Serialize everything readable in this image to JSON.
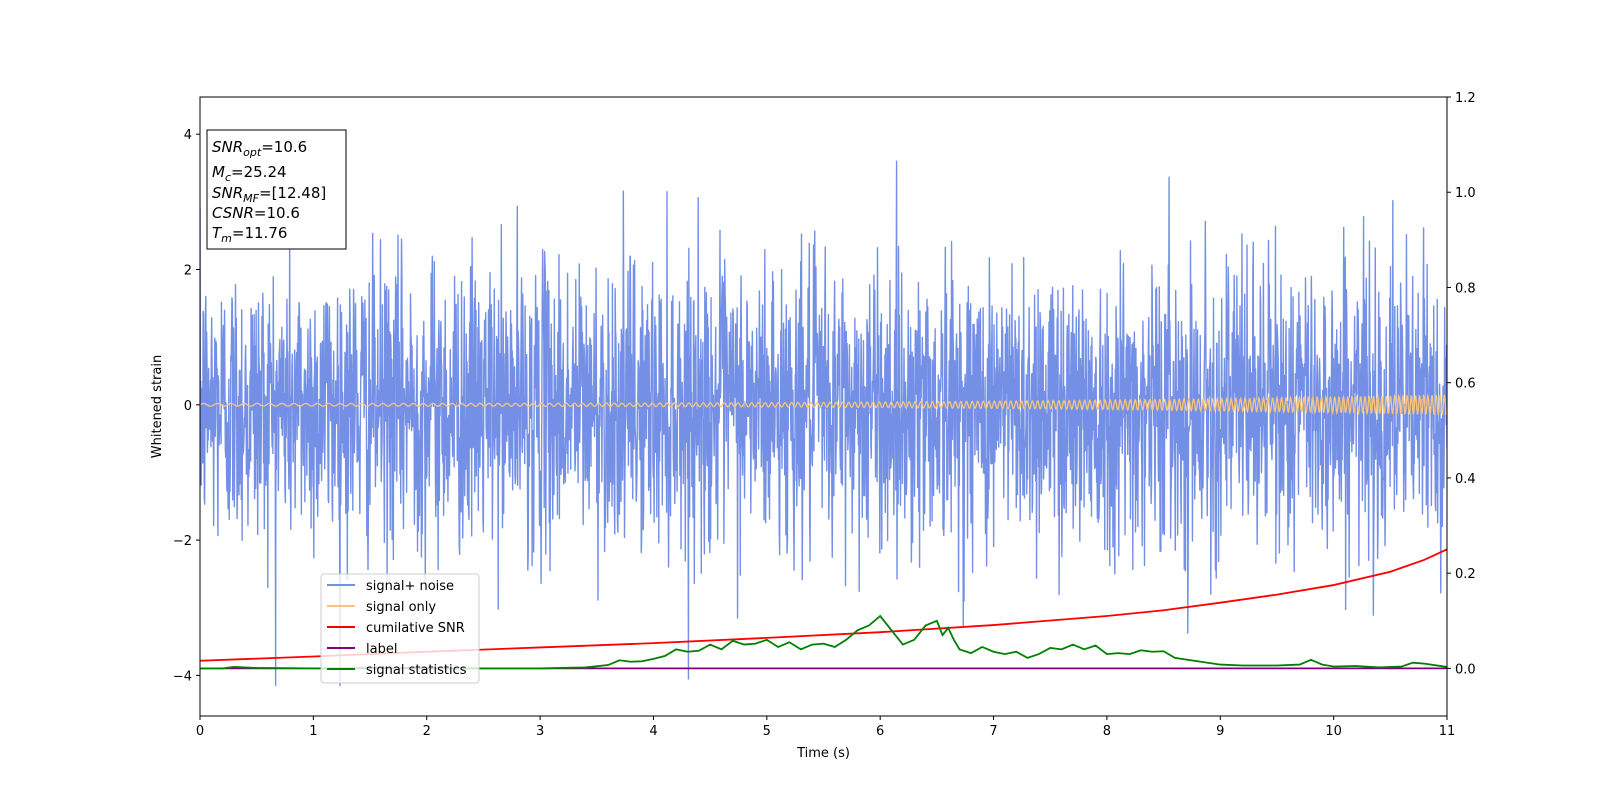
{
  "chart_data": {
    "type": "line",
    "xlabel": "Time (s)",
    "ylabel": "Whitened strain",
    "xlim": [
      0,
      11
    ],
    "ylim": [
      -4.6,
      4.55
    ],
    "y2lim": [
      -0.1,
      1.2
    ],
    "xticks": [
      "0",
      "1",
      "2",
      "3",
      "4",
      "5",
      "6",
      "7",
      "8",
      "9",
      "10",
      "11"
    ],
    "yticks": [
      "−4",
      "−2",
      "0",
      "2",
      "4"
    ],
    "y2ticks": [
      "0.0",
      "0.2",
      "0.4",
      "0.6",
      "0.8",
      "1.0",
      "1.2"
    ],
    "grid": false,
    "legend": {
      "location": "lower-left",
      "entries": [
        {
          "label": "signal+ noise",
          "color": "#7490e6"
        },
        {
          "label": "signal only",
          "color": "#f7c67a"
        },
        {
          "label": "cumilative SNR",
          "color": "#ff0000"
        },
        {
          "label": "label",
          "color": "#800080"
        },
        {
          "label": "signal statistics",
          "color": "#008000"
        }
      ]
    },
    "info_box": {
      "location": "top-left",
      "lines": [
        {
          "sym": "SNR",
          "sub": "opt",
          "val": "=10.6"
        },
        {
          "sym": "M",
          "sub": "c",
          "val": "=25.24"
        },
        {
          "sym": "SNR",
          "sub": "MF",
          "val": "=[12.48]"
        },
        {
          "sym": "CSNR",
          "sub": "",
          "val": "=10.6"
        },
        {
          "sym": "T",
          "sub": "m",
          "val": "=11.76"
        }
      ]
    },
    "series": [
      {
        "name": "signal+ noise",
        "axis": "left",
        "color": "#7490e6",
        "kind": "noise",
        "envelope_quantiles": [
          -2.3,
          2.3
        ],
        "extremes": [
          -4.15,
          4.12
        ]
      },
      {
        "name": "signal only",
        "axis": "left",
        "color": "#f7c67a",
        "kind": "chirp",
        "amplitude_start": 0.02,
        "amplitude_end": 0.15
      },
      {
        "name": "cumilative SNR",
        "axis": "right",
        "color": "#ff0000",
        "x": [
          0,
          1,
          2,
          3,
          4,
          5,
          6,
          7,
          8,
          8.5,
          9,
          9.5,
          10,
          10.5,
          10.8,
          11
        ],
        "y": [
          0.016,
          0.025,
          0.035,
          0.044,
          0.053,
          0.064,
          0.076,
          0.091,
          0.11,
          0.122,
          0.138,
          0.155,
          0.175,
          0.203,
          0.228,
          0.25
        ]
      },
      {
        "name": "label",
        "axis": "right",
        "color": "#800080",
        "x": [
          0,
          11
        ],
        "y": [
          0.0,
          0.0
        ]
      },
      {
        "name": "signal statistics",
        "axis": "right",
        "color": "#008000",
        "x": [
          0,
          0.2,
          0.3,
          0.5,
          1.0,
          1.5,
          2.0,
          2.5,
          3.0,
          3.4,
          3.6,
          3.7,
          3.8,
          3.9,
          4.0,
          4.1,
          4.2,
          4.3,
          4.4,
          4.5,
          4.6,
          4.7,
          4.8,
          4.9,
          5.0,
          5.1,
          5.2,
          5.3,
          5.4,
          5.5,
          5.6,
          5.7,
          5.8,
          5.9,
          6.0,
          6.1,
          6.2,
          6.3,
          6.4,
          6.5,
          6.55,
          6.6,
          6.65,
          6.7,
          6.8,
          6.9,
          7.0,
          7.1,
          7.2,
          7.3,
          7.4,
          7.5,
          7.6,
          7.7,
          7.8,
          7.9,
          8.0,
          8.1,
          8.2,
          8.3,
          8.4,
          8.5,
          8.6,
          8.8,
          9.0,
          9.2,
          9.5,
          9.7,
          9.8,
          9.9,
          10.0,
          10.2,
          10.4,
          10.6,
          10.7,
          10.8,
          11.0
        ],
        "y": [
          0.0,
          0.0,
          0.003,
          0.001,
          0.0,
          0.001,
          0.001,
          0.0,
          0.0,
          0.002,
          0.007,
          0.017,
          0.014,
          0.015,
          0.02,
          0.026,
          0.04,
          0.035,
          0.037,
          0.05,
          0.04,
          0.058,
          0.05,
          0.052,
          0.06,
          0.045,
          0.055,
          0.04,
          0.05,
          0.052,
          0.045,
          0.06,
          0.08,
          0.09,
          0.11,
          0.08,
          0.05,
          0.06,
          0.09,
          0.1,
          0.07,
          0.085,
          0.06,
          0.04,
          0.032,
          0.045,
          0.035,
          0.03,
          0.035,
          0.022,
          0.03,
          0.043,
          0.04,
          0.05,
          0.04,
          0.048,
          0.03,
          0.032,
          0.03,
          0.038,
          0.035,
          0.036,
          0.022,
          0.015,
          0.008,
          0.006,
          0.006,
          0.008,
          0.018,
          0.008,
          0.004,
          0.005,
          0.002,
          0.004,
          0.012,
          0.01,
          0.003
        ]
      }
    ]
  }
}
